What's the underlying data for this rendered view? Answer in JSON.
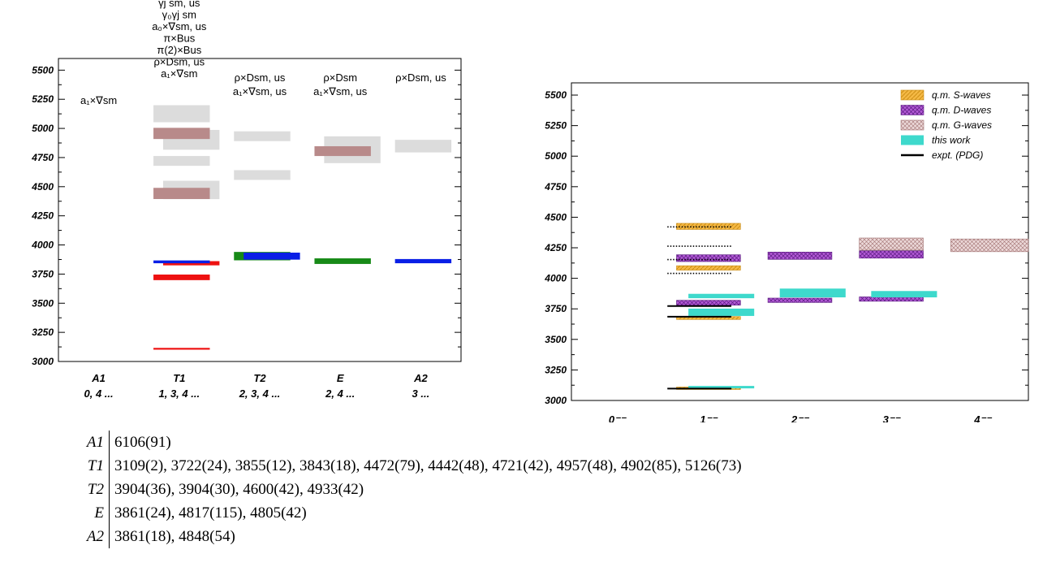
{
  "left_chart": {
    "type": "bar",
    "ylim": [
      3000,
      5600
    ],
    "yticks": [
      "3000",
      "3250",
      "3500",
      "3750",
      "4000",
      "4250",
      "4500",
      "4750",
      "5000",
      "5250",
      "5500"
    ],
    "columns": [
      {
        "irrep": "A1",
        "spins": "0, 4 ...",
        "operators": [
          "a₁×∇sm"
        ]
      },
      {
        "irrep": "T1",
        "spins": "1, 3, 4 ...",
        "operators": [
          "γj sm, us",
          "γ₀γj sm",
          "a₀×∇sm, us",
          "π×Bus",
          "π(2)×Bus",
          "ρ×Dsm, us",
          "a₁×∇sm"
        ]
      },
      {
        "irrep": "T2",
        "spins": "2, 3, 4 ...",
        "operators": [
          "ρ×Dsm, us",
          "a₁×∇sm, us"
        ]
      },
      {
        "irrep": "E",
        "spins": "2, 4 ...",
        "operators": [
          "ρ×Dsm",
          "a₁×∇sm, us"
        ]
      },
      {
        "irrep": "A2",
        "spins": "3 ...",
        "operators": [
          "ρ×Dsm, us"
        ]
      }
    ],
    "colors": {
      "red": "#ee1111",
      "blue": "#0a1fe6",
      "green": "#178a17",
      "brown": "#b88a8a",
      "grey": "#dcdcdc"
    },
    "bands": [
      {
        "col": 1,
        "value": 3109,
        "err": 2,
        "color": "red",
        "offset": 0
      },
      {
        "col": 1,
        "value": 3722,
        "err": 24,
        "color": "red",
        "offset": 0
      },
      {
        "col": 1,
        "value": 3843,
        "err": 18,
        "color": "red",
        "offset": 0.12
      },
      {
        "col": 1,
        "value": 3855,
        "err": 12,
        "color": "blue",
        "offset": 0
      },
      {
        "col": 1,
        "value": 4472,
        "err": 79,
        "color": "grey",
        "offset": 0.12
      },
      {
        "col": 1,
        "value": 4442,
        "err": 48,
        "color": "brown",
        "offset": 0
      },
      {
        "col": 1,
        "value": 4721,
        "err": 42,
        "color": "grey",
        "offset": 0
      },
      {
        "col": 1,
        "value": 4902,
        "err": 85,
        "color": "grey",
        "offset": 0.12
      },
      {
        "col": 1,
        "value": 4957,
        "err": 48,
        "color": "brown",
        "offset": 0
      },
      {
        "col": 1,
        "value": 5126,
        "err": 73,
        "color": "grey",
        "offset": 0
      },
      {
        "col": 2,
        "value": 3904,
        "err": 36,
        "color": "green",
        "offset": 0
      },
      {
        "col": 2,
        "value": 3904,
        "err": 30,
        "color": "blue",
        "offset": 0.12
      },
      {
        "col": 2,
        "value": 4600,
        "err": 42,
        "color": "grey",
        "offset": 0
      },
      {
        "col": 2,
        "value": 4933,
        "err": 42,
        "color": "grey",
        "offset": 0
      },
      {
        "col": 3,
        "value": 3861,
        "err": 24,
        "color": "green",
        "offset": 0
      },
      {
        "col": 3,
        "value": 4817,
        "err": 115,
        "color": "grey",
        "offset": 0.12
      },
      {
        "col": 3,
        "value": 4805,
        "err": 42,
        "color": "brown",
        "offset": 0
      },
      {
        "col": 4,
        "value": 3861,
        "err": 18,
        "color": "blue",
        "offset": 0
      },
      {
        "col": 4,
        "value": 4848,
        "err": 54,
        "color": "grey",
        "offset": 0
      }
    ]
  },
  "right_chart": {
    "type": "bar",
    "ylim": [
      3000,
      5600
    ],
    "yticks": [
      "3000",
      "3250",
      "3500",
      "3750",
      "4000",
      "4250",
      "4500",
      "4750",
      "5000",
      "5250",
      "5500"
    ],
    "categories": [
      "0⁻⁻",
      "1⁻⁻",
      "2⁻⁻",
      "3⁻⁻",
      "4⁻⁻"
    ],
    "legend": [
      {
        "label": "q.m. S-waves",
        "kind": "S"
      },
      {
        "label": "q.m. D-waves",
        "kind": "D"
      },
      {
        "label": "q.m. G-waves",
        "kind": "G"
      },
      {
        "label": "this work",
        "kind": "W"
      },
      {
        "label": "expt. (PDG)",
        "kind": "E"
      }
    ],
    "colors": {
      "S": "#f4b844",
      "D": "#b35ad6",
      "G": "#e0c8c8",
      "W": "#3ed9cc",
      "E": "#000000"
    },
    "bands": [
      {
        "cat": 1,
        "kind": "S",
        "value": 4425,
        "err": 25
      },
      {
        "cat": 1,
        "kind": "S",
        "value": 4085,
        "err": 18
      },
      {
        "cat": 1,
        "kind": "S",
        "value": 3675,
        "err": 12
      },
      {
        "cat": 1,
        "kind": "S",
        "value": 3100,
        "err": 10
      },
      {
        "cat": 1,
        "kind": "D",
        "value": 4165,
        "err": 28
      },
      {
        "cat": 1,
        "kind": "D",
        "value": 3800,
        "err": 20
      },
      {
        "cat": 1,
        "kind": "W",
        "value": 3855,
        "err": 18
      },
      {
        "cat": 1,
        "kind": "W",
        "value": 3722,
        "err": 30
      },
      {
        "cat": 1,
        "kind": "W",
        "value": 3109,
        "err": 8
      },
      {
        "cat": 2,
        "kind": "D",
        "value": 4185,
        "err": 30
      },
      {
        "cat": 2,
        "kind": "D",
        "value": 3820,
        "err": 18
      },
      {
        "cat": 2,
        "kind": "W",
        "value": 3880,
        "err": 36
      },
      {
        "cat": 3,
        "kind": "G",
        "value": 4280,
        "err": 50
      },
      {
        "cat": 3,
        "kind": "D",
        "value": 4195,
        "err": 30
      },
      {
        "cat": 3,
        "kind": "D",
        "value": 3830,
        "err": 18
      },
      {
        "cat": 3,
        "kind": "W",
        "value": 3870,
        "err": 26
      },
      {
        "cat": 4,
        "kind": "G",
        "value": 4270,
        "err": 52
      }
    ],
    "expt_lines": [
      {
        "value": 3097,
        "style": "solid"
      },
      {
        "value": 3686,
        "style": "solid"
      },
      {
        "value": 3773,
        "style": "solid"
      },
      {
        "value": 4040,
        "style": "dotted"
      },
      {
        "value": 4153,
        "style": "dotted"
      },
      {
        "value": 4263,
        "style": "dotted"
      },
      {
        "value": 4421,
        "style": "dotted"
      }
    ]
  },
  "table": {
    "rows": [
      {
        "label": "A1",
        "values": "6106(91)"
      },
      {
        "label": "T1",
        "values": "3109(2), 3722(24), 3855(12), 3843(18), 4472(79), 4442(48), 4721(42), 4957(48), 4902(85), 5126(73)"
      },
      {
        "label": "T2",
        "values": "3904(36), 3904(30), 4600(42), 4933(42)"
      },
      {
        "label": "E",
        "values": "3861(24), 4817(115), 4805(42)"
      },
      {
        "label": "A2",
        "values": "3861(18), 4848(54)"
      }
    ]
  }
}
